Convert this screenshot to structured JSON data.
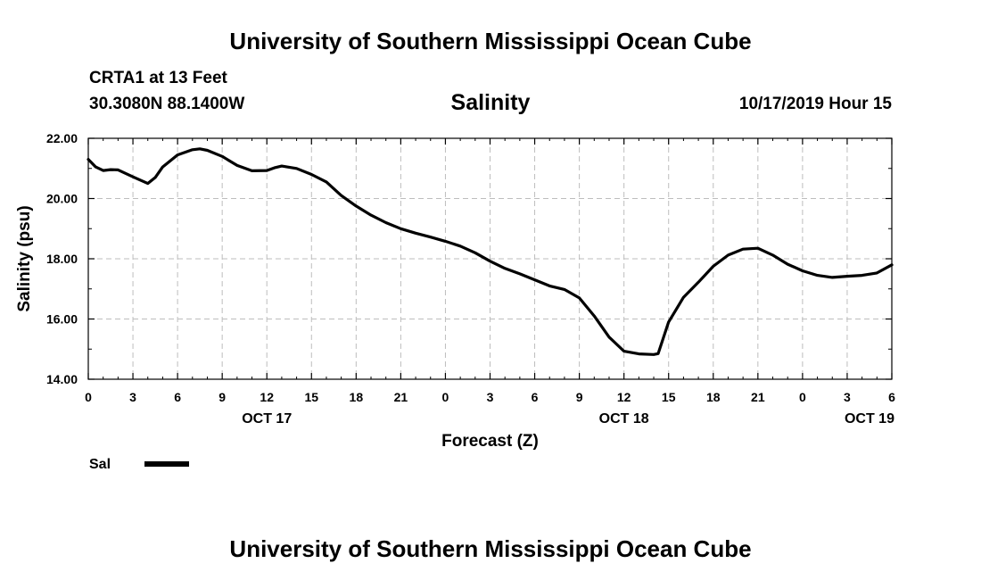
{
  "header": {
    "title_top": "University of Southern Mississippi Ocean Cube",
    "station": "CRTA1 at 13 Feet",
    "coords": "30.3080N 88.1400W",
    "datetime": "10/17/2019 Hour 15"
  },
  "footer": {
    "title_bottom": "University of Southern Mississippi Ocean Cube"
  },
  "chart_data": {
    "type": "line",
    "title": "Salinity",
    "ylabel": "Salinity (psu)",
    "xlabel": "Forecast (Z)",
    "x_unit": "hours from 2019-10-17 00Z",
    "xlim": [
      0,
      54
    ],
    "ylim": [
      14.0,
      22.0
    ],
    "y_ticks": [
      "14.00",
      "16.00",
      "18.00",
      "20.00",
      "22.00"
    ],
    "y_tick_values": [
      14,
      16,
      18,
      20,
      22
    ],
    "x_tick_labels": [
      "0",
      "3",
      "6",
      "9",
      "12",
      "15",
      "18",
      "21",
      "0",
      "3",
      "6",
      "9",
      "12",
      "15",
      "18",
      "21",
      "0",
      "3",
      "6"
    ],
    "day_labels": [
      {
        "hour": 12,
        "label": "OCT 17"
      },
      {
        "hour": 36,
        "label": "OCT 18"
      },
      {
        "hour": 52.5,
        "label": "OCT 19"
      }
    ],
    "grid": true,
    "legend": "bottom-left",
    "series": [
      {
        "name": "Sal",
        "color": "#000000",
        "x": [
          0,
          0.5,
          1,
          1.5,
          2,
          3,
          4,
          4.5,
          5,
          6,
          7,
          7.5,
          8,
          9,
          10,
          11,
          12,
          12.5,
          13,
          14,
          15,
          16,
          17,
          18,
          19,
          20,
          21,
          22,
          23,
          24,
          25,
          26,
          27,
          28,
          29,
          30,
          31,
          32,
          33,
          34,
          35,
          36,
          37,
          38,
          38.3,
          39,
          40,
          41,
          42,
          43,
          44,
          45,
          46,
          47,
          48,
          49,
          50,
          51,
          52,
          53,
          54
        ],
        "y": [
          21.3,
          21.05,
          20.93,
          20.96,
          20.95,
          20.72,
          20.5,
          20.7,
          21.05,
          21.45,
          21.62,
          21.65,
          21.6,
          21.4,
          21.1,
          20.92,
          20.93,
          21.02,
          21.08,
          21.0,
          20.8,
          20.55,
          20.1,
          19.75,
          19.45,
          19.2,
          19.0,
          18.85,
          18.72,
          18.58,
          18.42,
          18.2,
          17.92,
          17.68,
          17.5,
          17.3,
          17.1,
          16.98,
          16.7,
          16.1,
          15.4,
          14.93,
          14.84,
          14.82,
          14.85,
          15.9,
          16.72,
          17.22,
          17.75,
          18.12,
          18.32,
          18.35,
          18.12,
          17.82,
          17.6,
          17.45,
          17.38,
          17.42,
          17.45,
          17.53,
          17.8
        ]
      }
    ]
  }
}
